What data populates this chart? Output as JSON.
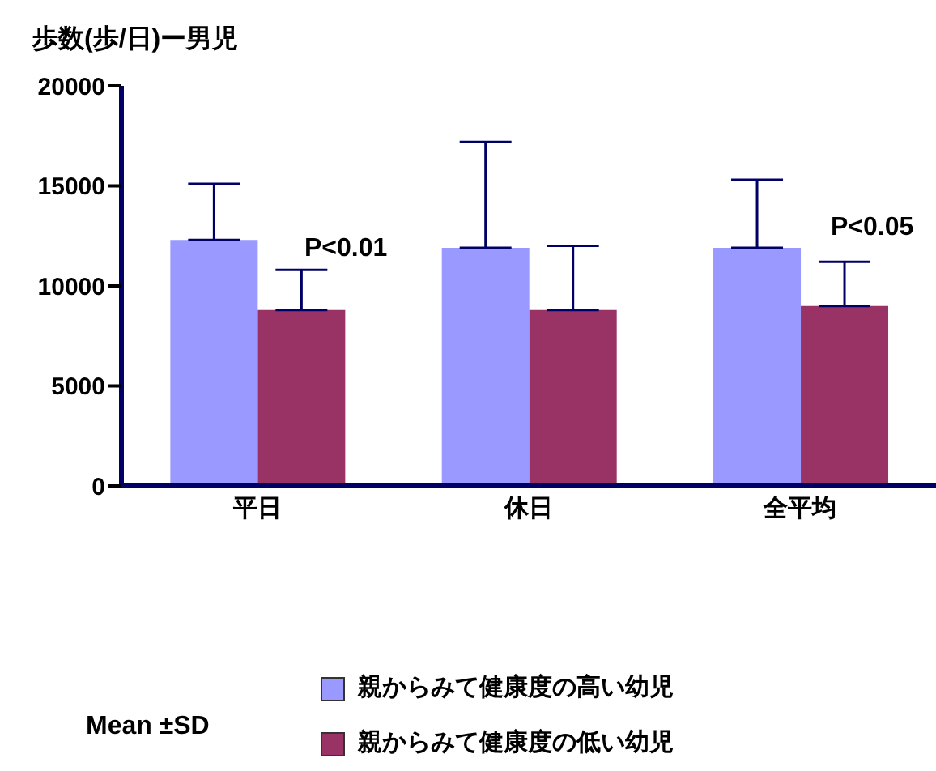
{
  "chart_data": {
    "type": "bar",
    "title": "歩数(歩/日)ー男児",
    "categories": [
      "平日",
      "休日",
      "全平均"
    ],
    "series": [
      {
        "name": "親からみて健康度の高い幼児",
        "color": "#9999ff",
        "values": [
          12300,
          11900,
          11900
        ],
        "errors": [
          2800,
          5300,
          3400
        ]
      },
      {
        "name": "親からみて健康度の低い幼児",
        "color": "#993366",
        "values": [
          8800,
          8800,
          9000
        ],
        "errors": [
          2000,
          3200,
          2200
        ]
      }
    ],
    "ylim": [
      0,
      20000
    ],
    "yticks": [
      0,
      5000,
      10000,
      15000,
      20000
    ],
    "grid": false,
    "legend": "bottom",
    "annotations": [
      "P<0.01",
      "P<0.05",
      "Mean ±SD"
    ]
  }
}
